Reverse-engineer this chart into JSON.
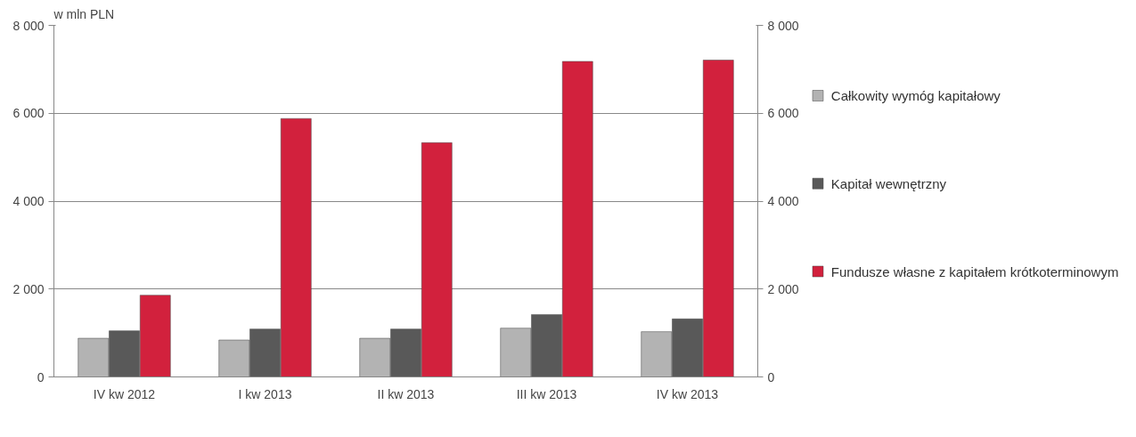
{
  "chart_data": {
    "type": "bar",
    "ylabel": "w mln PLN",
    "categories": [
      "IV kw 2012",
      "I kw 2013",
      "II kw 2013",
      "III kw 2013",
      "IV kw 2013"
    ],
    "series": [
      {
        "name": "Całkowity wymóg kapitałowy",
        "color": "#b3b3b3",
        "values": [
          880,
          840,
          880,
          1110,
          1030
        ]
      },
      {
        "name": "Kapitał wewnętrzny",
        "color": "#595959",
        "values": [
          1050,
          1090,
          1090,
          1420,
          1320
        ]
      },
      {
        "name": "Fundusze własne z kapitałem krótkoterminowym",
        "color": "#d2213d",
        "values": [
          1860,
          5880,
          5330,
          7180,
          7210
        ]
      }
    ],
    "ylim": [
      0,
      8000
    ],
    "yticks": [
      {
        "value": 0,
        "label": "0"
      },
      {
        "value": 2000,
        "label": "2 000"
      },
      {
        "value": 4000,
        "label": "4 000"
      },
      {
        "value": 6000,
        "label": "6 000"
      },
      {
        "value": 8000,
        "label": "8 000"
      }
    ],
    "y2lim": [
      0,
      8000
    ],
    "y2ticks": [
      {
        "value": 0,
        "label": "0"
      },
      {
        "value": 2000,
        "label": "2 000"
      },
      {
        "value": 4000,
        "label": "4 000"
      },
      {
        "value": 6000,
        "label": "6 000"
      },
      {
        "value": 8000,
        "label": "8 000"
      }
    ],
    "grid": "y",
    "legend": "right"
  }
}
